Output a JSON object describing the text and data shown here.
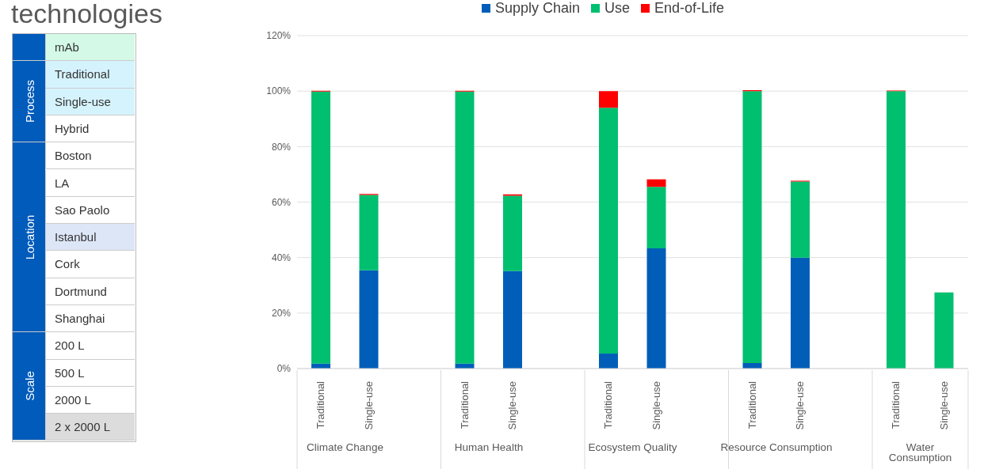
{
  "chart_data": [
    {
      "type": "other",
      "title": "technologies",
      "categories": [
        null,
        "Process",
        "Location",
        "Scale"
      ],
      "y_categories": [
        "mAb",
        "Traditional",
        "Single-use",
        "Hybrid",
        "Boston",
        "LA",
        "Sao Paolo",
        "Istanbul",
        "Cork",
        "Dortmund",
        "Shanghai",
        "200 L",
        "500 L",
        "2000 L",
        "2 x 2000 L"
      ]
    },
    {
      "type": "bar",
      "stacked": true,
      "categories": [
        "Traditional",
        "Single-use",
        null,
        "Traditional",
        "Single-use",
        null,
        "Traditional",
        "Single-use",
        null,
        "Traditional",
        "Single-use",
        null,
        "Traditional",
        "Single-use"
      ],
      "series": [
        {
          "name": "Supply Chain",
          "color": "#005eb8",
          "values": [
            1.8,
            35.4,
            null,
            1.8,
            35.1,
            null,
            5.4,
            43.3,
            null,
            2.0,
            40.0,
            null,
            0,
            0
          ]
        },
        {
          "name": "Use",
          "color": "#00bf6f",
          "values": [
            98.0,
            27.2,
            null,
            98.0,
            27.2,
            null,
            88.6,
            22.2,
            null,
            98.0,
            27.4,
            null,
            100,
            27.4
          ]
        },
        {
          "name": "End-of-Life",
          "color": "#ff0000",
          "values": [
            0.3,
            0.3,
            null,
            0.3,
            0.5,
            null,
            6.0,
            2.7,
            null,
            0.3,
            0.3,
            null,
            0.2,
            0
          ]
        }
      ],
      "ylim": [
        0,
        120
      ],
      "yticks": [
        {
          "value": 0,
          "label": "0%"
        },
        {
          "value": 20,
          "label": "20%"
        },
        {
          "value": 40,
          "label": "40%"
        },
        {
          "value": 60,
          "label": "60%"
        },
        {
          "value": 80,
          "label": "80%"
        },
        {
          "value": 100,
          "label": "100%"
        },
        {
          "value": 120,
          "label": "120%"
        }
      ],
      "grid": "y",
      "legend": "top",
      "annotations": [
        "Climate Change",
        "Human Health",
        "Ecosystem Quality",
        "Resource Consumption",
        "Water Consumption"
      ]
    }
  ]
}
